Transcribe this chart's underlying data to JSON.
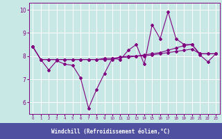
{
  "background_color": "#c8e8e5",
  "plot_bg_color": "#c8e8e5",
  "grid_color": "#ffffff",
  "line_color": "#800080",
  "xlabel": "Windchill (Refroidissement éolien,°C)",
  "xlabel_bg": "#6060a0",
  "xlabel_fg": "#ffffff",
  "xlim": [
    -0.5,
    23.5
  ],
  "ylim": [
    5.5,
    10.3
  ],
  "yticks": [
    6,
    7,
    8,
    9,
    10
  ],
  "xticks": [
    0,
    1,
    2,
    3,
    4,
    5,
    6,
    7,
    8,
    9,
    10,
    11,
    12,
    13,
    14,
    15,
    16,
    17,
    18,
    19,
    20,
    21,
    22,
    23
  ],
  "series1": {
    "x": [
      0,
      1,
      2,
      3,
      4,
      5,
      6,
      7,
      8,
      9,
      10,
      11,
      12,
      13,
      14,
      15,
      16,
      17,
      18,
      19,
      20,
      21,
      22,
      23
    ],
    "y": [
      8.4,
      7.85,
      7.4,
      7.8,
      7.65,
      7.6,
      7.05,
      5.75,
      6.55,
      7.25,
      7.9,
      7.85,
      8.25,
      8.5,
      7.65,
      9.35,
      8.75,
      9.9,
      8.75,
      8.5,
      8.5,
      8.05,
      7.75,
      8.1
    ]
  },
  "series2": {
    "x": [
      0,
      1,
      2,
      3,
      4,
      5,
      6,
      7,
      8,
      9,
      10,
      11,
      12,
      13,
      14,
      15,
      16,
      17,
      18,
      19,
      20,
      21,
      22,
      23
    ],
    "y": [
      8.4,
      7.85,
      7.85,
      7.85,
      7.85,
      7.85,
      7.85,
      7.85,
      7.85,
      7.9,
      7.9,
      7.95,
      7.95,
      8.0,
      8.0,
      8.05,
      8.1,
      8.15,
      8.2,
      8.25,
      8.3,
      8.1,
      8.1,
      8.1
    ]
  },
  "series3": {
    "x": [
      0,
      1,
      2,
      3,
      4,
      5,
      6,
      7,
      8,
      9,
      10,
      11,
      12,
      13,
      14,
      15,
      16,
      17,
      18,
      19,
      20,
      21,
      22,
      23
    ],
    "y": [
      8.4,
      7.85,
      7.85,
      7.85,
      7.85,
      7.85,
      7.85,
      7.85,
      7.85,
      7.85,
      7.85,
      7.95,
      8.0,
      8.0,
      8.05,
      8.1,
      8.15,
      8.25,
      8.35,
      8.45,
      8.5,
      8.1,
      8.1,
      8.1
    ]
  }
}
